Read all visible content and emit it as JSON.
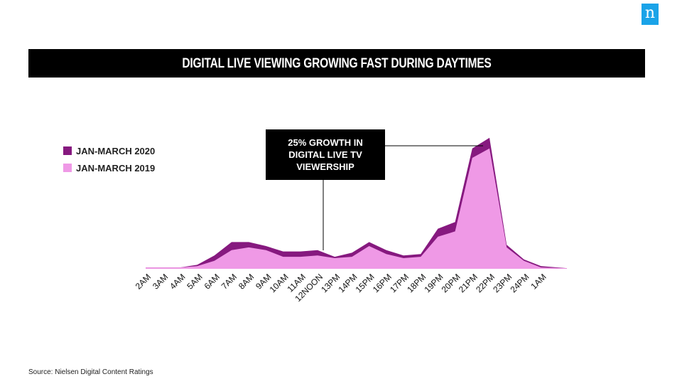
{
  "logo": {
    "text": "n"
  },
  "title": "DIGITAL LIVE VIEWING GROWING FAST DURING DAYTIMES",
  "source": "Source: Nielsen Digital Content Ratings",
  "colors": {
    "series_2020": "#86197f",
    "series_2019": "#ef99e6",
    "callout_bg": "#000000",
    "logo_bg": "#1aa3e8"
  },
  "chart_data": {
    "type": "area",
    "title": "DIGITAL LIVE VIEWING GROWING FAST DURING DAYTIMES",
    "xlabel": "",
    "ylabel": "",
    "ylim": [
      0,
      100
    ],
    "grid": false,
    "legend_position": "top-left",
    "categories": [
      "2AM",
      "3AM",
      "4AM",
      "5AM",
      "6AM",
      "7AM",
      "8AM",
      "9AM",
      "10AM",
      "11AM",
      "12NOON",
      "13PM",
      "14PM",
      "15PM",
      "16PM",
      "17PM",
      "18PM",
      "19PM",
      "20PM",
      "21PM",
      "22PM",
      "23PM",
      "24PM",
      "1AM"
    ],
    "series": [
      {
        "name": "JAN-MARCH 2020",
        "color": "#86197f",
        "values": [
          1,
          1,
          1,
          3,
          10,
          20,
          20,
          17,
          13,
          13,
          14,
          9,
          12,
          20,
          14,
          10,
          11,
          30,
          35,
          90,
          98,
          18,
          7,
          2
        ]
      },
      {
        "name": "JAN-MARCH 2019",
        "color": "#ef99e6",
        "values": [
          1,
          1,
          1,
          2,
          6,
          14,
          16,
          14,
          9,
          9,
          10,
          8,
          9,
          17,
          11,
          8,
          9,
          24,
          28,
          83,
          90,
          16,
          6,
          1
        ]
      }
    ],
    "annotations": [
      {
        "text": "25% GROWTH IN\nDIGITAL LIVE TV\nVIEWERSHIP",
        "pointers": [
          "12NOON",
          "21PM"
        ]
      }
    ]
  }
}
